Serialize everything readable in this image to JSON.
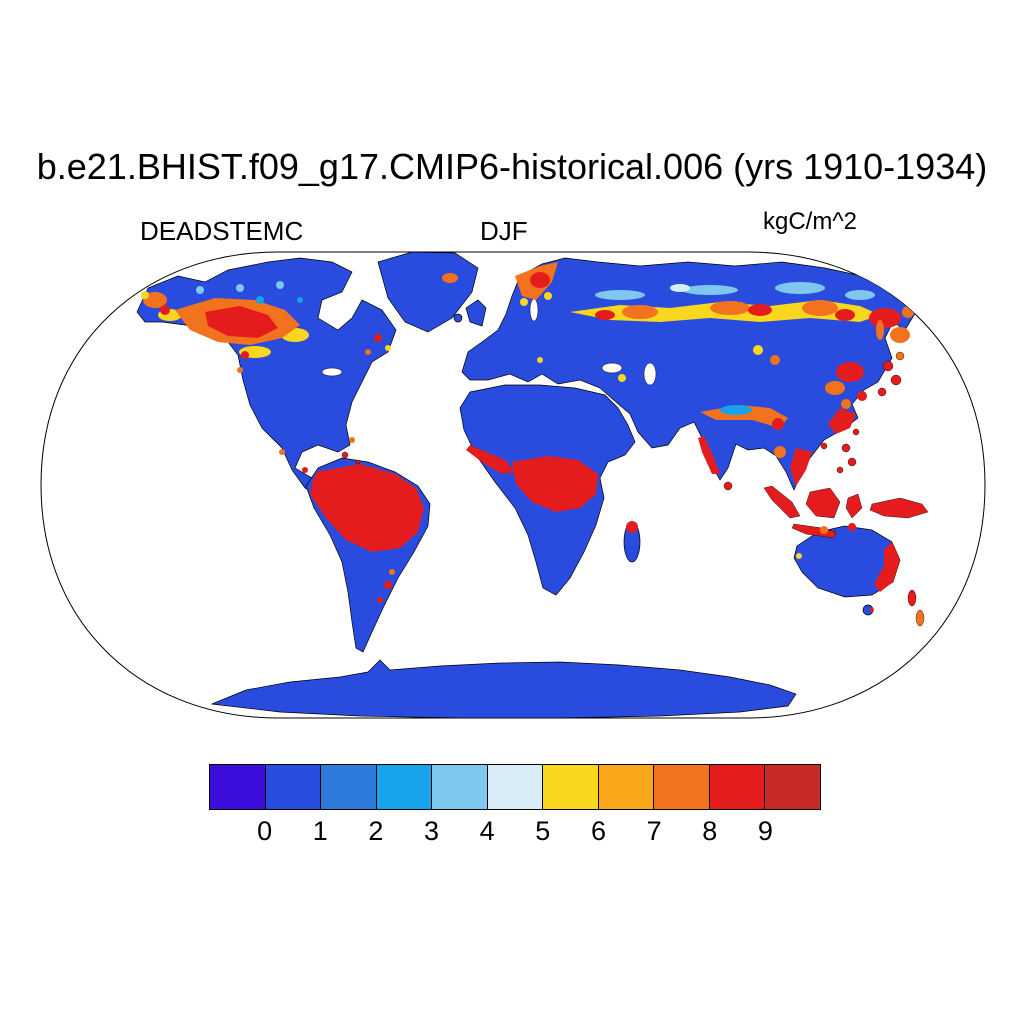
{
  "header": {
    "title": "b.e21.BHIST.f09_g17.CMIP6-historical.006 (yrs 1910-1934)",
    "variable_label": "DEADSTEMC",
    "season_label": "DJF",
    "units_label": "kgC/m^2"
  },
  "chart_data": {
    "type": "heatmap",
    "subtype": "global-map-filled-contours",
    "projection": "robinson",
    "title": "b.e21.BHIST.f09_g17.CMIP6-historical.006 (yrs 1910-1934)",
    "variable": "DEADSTEMC",
    "season": "DJF",
    "units": "kgC/m^2",
    "colorbar": {
      "orientation": "horizontal",
      "tick_labels": [
        "0",
        "1",
        "2",
        "3",
        "4",
        "5",
        "6",
        "7",
        "8",
        "9"
      ],
      "colors": [
        "#3D0DDB",
        "#2A4CDE",
        "#2E79DC",
        "#16A3EA",
        "#7EC8F0",
        "#D9EDF9",
        "#F9D71E",
        "#FBA71B",
        "#F3721E",
        "#E41C1E",
        "#C62B28"
      ]
    },
    "map_colors": {
      "ocean": "#FFFFFF",
      "low_value_land": "#2A4CDE",
      "high_value_land": "#E41C1E",
      "coastline": "#000000"
    },
    "map_reading": {
      "ocean": "white, no data",
      "most_land": "0-1 kgC/m^2 (royal blue)",
      "antarctica_greenland": "0-1 kgC/m^2 (royal blue)",
      "high_regions_about_9_plus": [
        "Amazon basin",
        "Congo basin",
        "West African coast",
        "Southeast Asia",
        "Indonesia",
        "New Guinea",
        "Japan",
        "eastern Australia coast",
        "New Zealand",
        "northern Madagascar",
        "Central America"
      ],
      "mixed_bands_2_to_9": [
        "boreal western Canada and Alaska",
        "southern Scandinavia",
        "southern Siberia belt",
        "Russian Far East and Manchuria",
        "southeast China coast"
      ]
    }
  }
}
